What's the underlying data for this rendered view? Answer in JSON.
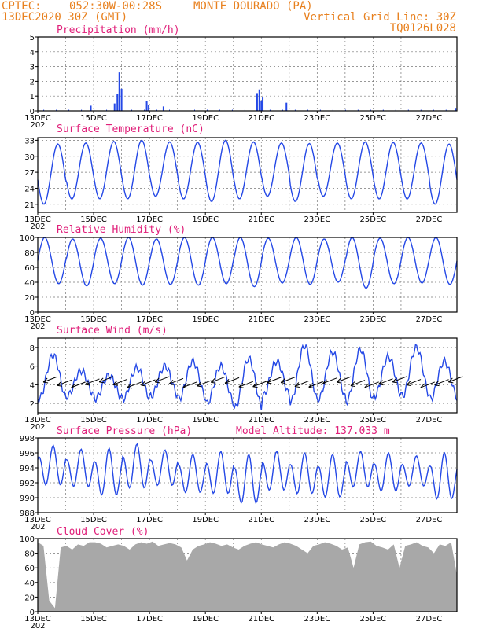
{
  "header": {
    "source": "CPTEC:",
    "coords": "052:30W-00:28S",
    "station": "MONTE DOURADO (PA)",
    "datetime": "13DEC2020 30Z (GMT)",
    "grid_line": "Vertical Grid Line: 30Z",
    "code": "TQ0126L028"
  },
  "x_ticks": [
    "13DEC",
    "15DEC",
    "17DEC",
    "19DEC",
    "21DEC",
    "23DEC",
    "25DEC",
    "27DEC"
  ],
  "x_ticks_under": "202",
  "colors": {
    "series": "#2448e6",
    "cloud": "#a8a8a8",
    "wind_arrow": "#000000",
    "header": "#e8801e",
    "panel_title": "#e0207a"
  },
  "chart_data": [
    {
      "type": "bar",
      "title": "Precipitation (mm/h)",
      "ylim": [
        0,
        5
      ],
      "yticks": [
        "0",
        "1",
        "2",
        "3",
        "4",
        "5"
      ],
      "bars": [
        [
          14.9,
          0.35
        ],
        [
          15.75,
          0.5
        ],
        [
          15.85,
          1.15
        ],
        [
          15.92,
          2.6
        ],
        [
          16.0,
          1.5
        ],
        [
          16.9,
          0.65
        ],
        [
          16.97,
          0.4
        ],
        [
          17.5,
          0.3
        ],
        [
          20.85,
          1.2
        ],
        [
          20.93,
          1.45
        ],
        [
          21.0,
          0.7
        ],
        [
          21.05,
          0.9
        ],
        [
          21.9,
          0.55
        ],
        [
          27.95,
          0.2
        ]
      ]
    },
    {
      "type": "line",
      "title": "Surface Temperature (nC)",
      "ylim": [
        19.5,
        33.5
      ],
      "yticks": [
        "21",
        "24",
        "27",
        "30",
        "33"
      ],
      "tmin": [
        21.0,
        22.0,
        22.0,
        22.0,
        22.5,
        22.0,
        21.5,
        22.0,
        22.5,
        21.5,
        22.5,
        22.0,
        22.0,
        22.0,
        21.0
      ],
      "tmax": [
        32.3,
        32.5,
        32.8,
        33.0,
        32.7,
        32.6,
        33.0,
        32.7,
        32.5,
        32.4,
        32.5,
        32.7,
        32.6,
        32.5,
        32.3
      ]
    },
    {
      "type": "line",
      "title": "Relative Humidity (%)",
      "ylim": [
        0,
        100
      ],
      "yticks": [
        "0",
        "20",
        "40",
        "60",
        "80",
        "100"
      ],
      "hmax": [
        100,
        98,
        99,
        100,
        98,
        100,
        100,
        100,
        99,
        100,
        98,
        100,
        99,
        100,
        100
      ],
      "hmin": [
        38,
        35,
        38,
        36,
        37,
        36,
        38,
        34,
        39,
        37,
        40,
        32,
        38,
        39,
        37
      ]
    },
    {
      "type": "line",
      "title": "Surface Wind (m/s)",
      "ylim": [
        1,
        9
      ],
      "yticks": [
        "2",
        "4",
        "6",
        "8"
      ],
      "wmax": [
        7.2,
        5.5,
        5.0,
        5.8,
        6.0,
        6.5,
        6.0,
        6.8,
        6.5,
        8.2,
        7.5,
        7.8,
        7.0,
        8.0,
        6.5
      ],
      "wmin": [
        2.5,
        2.8,
        2.5,
        2.5,
        2.8,
        2.5,
        2.0,
        1.5,
        2.8,
        2.2,
        2.5,
        2.2,
        2.8,
        2.8,
        2.5
      ]
    },
    {
      "type": "line",
      "title": "Surface Pressure (hPa)",
      "subtitle": "Model Altitude: 137.033 m",
      "ylim": [
        988,
        998
      ],
      "yticks": [
        "988",
        "990",
        "992",
        "994",
        "996",
        "998"
      ],
      "pmax": [
        997.0,
        996.5,
        996.6,
        997.2,
        996.4,
        995.8,
        996.2,
        995.8,
        996.2,
        996.0,
        995.8,
        996.2,
        996.0,
        995.6,
        996.0
      ],
      "pmin": [
        991.0,
        990.8,
        989.5,
        990.5,
        991.0,
        990.0,
        989.8,
        988.4,
        990.3,
        989.8,
        989.3,
        990.8,
        990.2,
        991.0,
        989.0
      ]
    },
    {
      "type": "area",
      "title": "Cloud Cover (%)",
      "ylim": [
        0,
        100
      ],
      "yticks": [
        "0",
        "20",
        "40",
        "60",
        "80",
        "100"
      ],
      "cover": [
        95,
        90,
        15,
        5,
        88,
        90,
        85,
        92,
        90,
        95,
        95,
        93,
        88,
        90,
        92,
        90,
        85,
        92,
        95,
        93,
        96,
        90,
        92,
        94,
        92,
        88,
        70,
        85,
        90,
        92,
        95,
        93,
        90,
        92,
        88,
        85,
        90,
        93,
        95,
        92,
        90,
        88,
        92,
        95,
        93,
        90,
        85,
        80,
        90,
        92,
        95,
        93,
        90,
        85,
        88,
        60,
        92,
        95,
        96,
        90,
        88,
        85,
        92,
        60,
        90,
        92,
        95,
        90,
        88,
        80,
        92,
        90,
        95,
        50
      ]
    }
  ]
}
